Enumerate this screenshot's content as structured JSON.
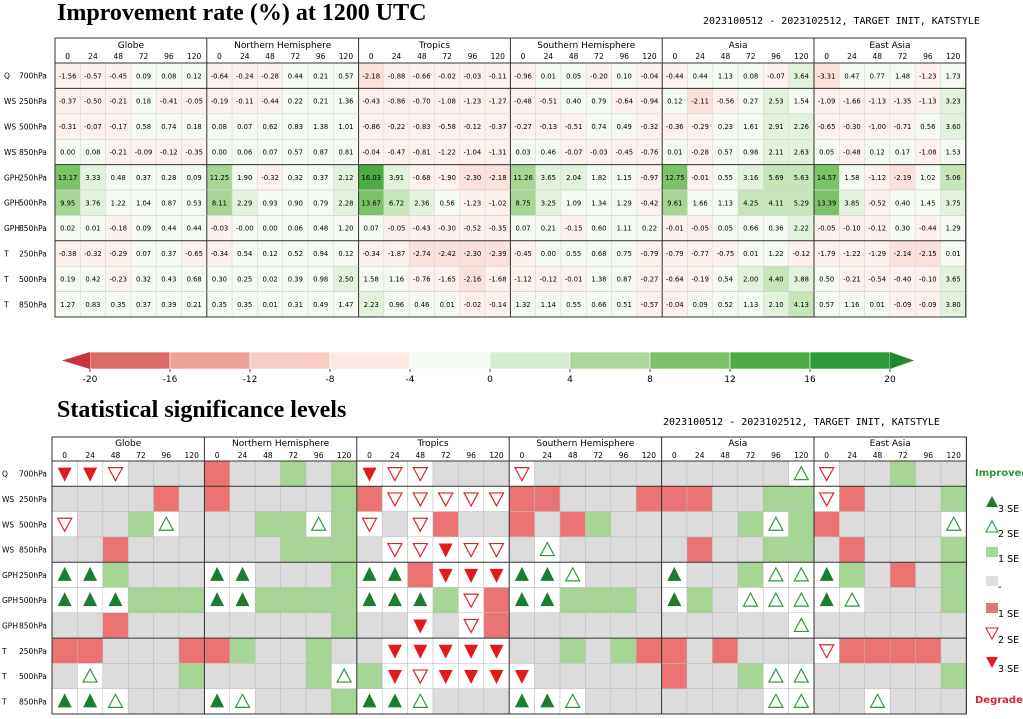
{
  "chart_data": [
    {
      "type": "heatmap",
      "title": "Improvement rate (%) at 1200 UTC",
      "subtitle": "2023100512 - 2023102512, TARGET INIT, KATSTYLE",
      "regions": [
        "Globe",
        "Northern Hemisphere",
        "Tropics",
        "Southern Hemisphere",
        "Asia",
        "East Asia"
      ],
      "lead_times": [
        "0",
        "24",
        "48",
        "72",
        "96",
        "120"
      ],
      "rows": [
        "Q 700hPa",
        "WS 250hPa",
        "WS 500hPa",
        "WS 850hPa",
        "GPH 250hPa",
        "GPH 500hPa",
        "GPH 850hPa",
        "T 250hPa",
        "T 500hPa",
        "T 850hPa"
      ],
      "values": [
        [
          "-1.56",
          "-0.57",
          "-0.45",
          "0.09",
          "0.08",
          "0.12",
          "-0.64",
          "-0.24",
          "-0.28",
          "0.44",
          "0.21",
          "0.57",
          "-2.18",
          "-0.88",
          "-0.66",
          "-0.02",
          "-0.03",
          "-0.11",
          "-0.96",
          "0.01",
          "0.05",
          "-0.20",
          "0.10",
          "-0.04",
          "-0.44",
          "0.44",
          "1.13",
          "0.08",
          "-0.07",
          "3.64",
          "-3.31",
          "0.47",
          "0.77",
          "1.48",
          "-1.23",
          "1.73"
        ],
        [
          "-0.37",
          "-0.50",
          "-0.21",
          "0.18",
          "-0.41",
          "-0.05",
          "-0.19",
          "-0.11",
          "-0.44",
          "0.22",
          "0.21",
          "1.36",
          "-0.43",
          "-0.86",
          "-0.70",
          "-1.08",
          "-1.23",
          "-1.27",
          "-0.48",
          "-0.51",
          "0.40",
          "0.79",
          "-0.64",
          "-0.94",
          "0.12",
          "-2.11",
          "-0.56",
          "0.27",
          "2.53",
          "1.54",
          "-1.09",
          "-1.66",
          "-1.13",
          "-1.35",
          "-1.13",
          "3.23"
        ],
        [
          "-0.31",
          "-0.07",
          "-0.17",
          "0.58",
          "0.74",
          "0.18",
          "0.08",
          "0.07",
          "0.62",
          "0.83",
          "1.38",
          "1.01",
          "-0.86",
          "-0.22",
          "-0.83",
          "-0.58",
          "-0.12",
          "-0.37",
          "-0.27",
          "-0.13",
          "-0.51",
          "0.74",
          "0.49",
          "-0.32",
          "-0.36",
          "-0.29",
          "0.23",
          "1.61",
          "2.91",
          "2.26",
          "-0.65",
          "-0.30",
          "-1.00",
          "-0.71",
          "0.56",
          "3.60"
        ],
        [
          "0.00",
          "0.08",
          "-0.21",
          "-0.09",
          "-0.12",
          "-0.35",
          "0.00",
          "0.06",
          "0.07",
          "0.57",
          "0.87",
          "0.81",
          "-0.04",
          "-0.47",
          "-0.81",
          "-1.22",
          "-1.04",
          "-1.31",
          "0.03",
          "0.46",
          "-0.07",
          "-0.03",
          "-0.45",
          "-0.76",
          "0.01",
          "-0.28",
          "0.57",
          "0.98",
          "2.11",
          "2.63",
          "0.05",
          "-0.48",
          "0.12",
          "0.17",
          "-1.08",
          "1.53"
        ],
        [
          "13.17",
          "3.33",
          "0.48",
          "0.37",
          "0.28",
          "0.09",
          "11.25",
          "1.90",
          "-0.32",
          "0.32",
          "0.37",
          "2.12",
          "16.03",
          "3.91",
          "-0.68",
          "-1.90",
          "-2.30",
          "-2.18",
          "11.26",
          "3.65",
          "2.04",
          "1.82",
          "1.15",
          "-0.97",
          "12.75",
          "-0.01",
          "0.55",
          "3.16",
          "5.69",
          "5.63",
          "14.57",
          "1.58",
          "-1.12",
          "-2.19",
          "1.02",
          "5.06"
        ],
        [
          "9.95",
          "3.76",
          "1.22",
          "1.04",
          "0.87",
          "0.53",
          "8.11",
          "2.29",
          "0.93",
          "0.90",
          "0.79",
          "2.28",
          "13.67",
          "6.72",
          "2.36",
          "0.56",
          "-1.23",
          "-1.02",
          "8.75",
          "3.25",
          "1.09",
          "1.34",
          "1.29",
          "-0.42",
          "9.61",
          "1.66",
          "1.13",
          "4.25",
          "4.11",
          "5.29",
          "13.39",
          "3.85",
          "-0.52",
          "0.40",
          "1.45",
          "3.75"
        ],
        [
          "0.02",
          "0.01",
          "-0.18",
          "0.09",
          "0.44",
          "0.44",
          "-0.03",
          "-0.00",
          "0.00",
          "0.06",
          "0.48",
          "1.20",
          "0.07",
          "-0.05",
          "-0.43",
          "-0.30",
          "-0.52",
          "-0.35",
          "0.07",
          "0.21",
          "-0.15",
          "0.60",
          "1.11",
          "0.22",
          "-0.01",
          "-0.05",
          "0.05",
          "0.66",
          "0.36",
          "2.22",
          "-0.05",
          "-0.10",
          "-0.12",
          "0.30",
          "-0.44",
          "1.29"
        ],
        [
          "-0.38",
          "-0.32",
          "-0.29",
          "0.07",
          "0.37",
          "-0.65",
          "-0.34",
          "0.54",
          "0.12",
          "0.52",
          "0.94",
          "0.12",
          "-0.34",
          "-1.87",
          "-2.74",
          "-2.42",
          "-2.30",
          "-2.39",
          "-0.45",
          "0.00",
          "0.55",
          "0.68",
          "0.75",
          "-0.79",
          "-0.79",
          "-0.77",
          "-0.75",
          "0.01",
          "1.22",
          "-0.12",
          "-1.79",
          "-1.22",
          "-1.29",
          "-2.14",
          "-2.15",
          "0.01"
        ],
        [
          "0.19",
          "0.42",
          "-0.23",
          "0.32",
          "0.43",
          "0.68",
          "0.30",
          "0.25",
          "0.02",
          "0.39",
          "0.98",
          "2.50",
          "1.58",
          "1.16",
          "-0.76",
          "-1.65",
          "-2.16",
          "-1.68",
          "-1.12",
          "-0.12",
          "-0.01",
          "1.38",
          "0.87",
          "-0.27",
          "-0.64",
          "-0.19",
          "0.54",
          "2.00",
          "4.40",
          "3.88",
          "0.50",
          "-0.21",
          "-0.54",
          "-0.40",
          "-0.10",
          "3.65"
        ],
        [
          "1.27",
          "0.83",
          "0.35",
          "0.37",
          "0.39",
          "0.21",
          "0.35",
          "0.35",
          "0.01",
          "0.31",
          "0.49",
          "1.47",
          "2.23",
          "0.96",
          "0.46",
          "0.01",
          "-0.02",
          "-0.14",
          "1.32",
          "1.14",
          "0.55",
          "0.66",
          "0.51",
          "-0.57",
          "-0.04",
          "0.09",
          "0.52",
          "1.13",
          "2.10",
          "4.13",
          "0.57",
          "1.16",
          "0.01",
          "-0.09",
          "-0.09",
          "3.80"
        ]
      ],
      "colorbar": {
        "ticks": [
          "-20",
          "-16",
          "-12",
          "-8",
          "-4",
          "0",
          "4",
          "8",
          "12",
          "16",
          "20"
        ],
        "colors": [
          "#c8343a",
          "#dc6b66",
          "#eea294",
          "#f7cdc4",
          "#fde9e4",
          "#f5fbf2",
          "#d5ecd0",
          "#a9d79a",
          "#7cc269",
          "#4cab42",
          "#2f9a3a",
          "#1f8a2f"
        ]
      }
    },
    {
      "type": "heatmap",
      "title": "Statistical significance levels",
      "subtitle": "2023100512 - 2023102512, TARGET INIT, KATSTYLE",
      "regions": [
        "Globe",
        "Northern Hemisphere",
        "Tropics",
        "Southern Hemisphere",
        "Asia",
        "East Asia"
      ],
      "lead_times": [
        "0",
        "24",
        "48",
        "72",
        "96",
        "120"
      ],
      "rows": [
        "Q 700hPa",
        "WS 250hPa",
        "WS 500hPa",
        "WS 850hPa",
        "GPH 250hPa",
        "GPH 500hPa",
        "GPH 850hPa",
        "T 250hPa",
        "T 500hPa",
        "T 850hPa"
      ],
      "levels": [
        [
          -3,
          -3,
          -2,
          0,
          0,
          0,
          -1,
          0,
          0,
          1,
          0,
          1,
          -3,
          -2,
          -2,
          0,
          0,
          0,
          -2,
          0,
          0,
          0,
          0,
          0,
          0,
          0,
          0,
          0,
          0,
          2,
          -2,
          0,
          0,
          1,
          0,
          0
        ],
        [
          0,
          0,
          0,
          0,
          -1,
          0,
          -1,
          0,
          0,
          0,
          0,
          1,
          -1,
          -2,
          -2,
          -2,
          -2,
          -2,
          -1,
          -1,
          0,
          0,
          0,
          -1,
          -1,
          -1,
          0,
          0,
          1,
          1,
          -2,
          -1,
          0,
          0,
          0,
          1
        ],
        [
          -2,
          0,
          0,
          1,
          2,
          0,
          0,
          0,
          1,
          1,
          2,
          1,
          -2,
          0,
          -2,
          -1,
          0,
          0,
          -1,
          0,
          -1,
          1,
          0,
          0,
          0,
          0,
          0,
          1,
          2,
          1,
          -1,
          0,
          0,
          0,
          0,
          2
        ],
        [
          0,
          0,
          -1,
          0,
          0,
          0,
          0,
          0,
          0,
          1,
          1,
          1,
          0,
          -2,
          -2,
          -3,
          -2,
          -2,
          0,
          2,
          0,
          0,
          0,
          0,
          0,
          -1,
          0,
          0,
          1,
          1,
          0,
          -1,
          0,
          0,
          0,
          1
        ],
        [
          3,
          3,
          1,
          0,
          0,
          0,
          3,
          3,
          0,
          0,
          0,
          1,
          3,
          3,
          -1,
          -3,
          -3,
          -3,
          3,
          3,
          2,
          0,
          0,
          0,
          3,
          0,
          0,
          1,
          2,
          2,
          3,
          1,
          0,
          -1,
          0,
          1
        ],
        [
          3,
          3,
          3,
          1,
          1,
          1,
          3,
          3,
          1,
          1,
          1,
          1,
          3,
          3,
          3,
          1,
          -2,
          -1,
          3,
          3,
          1,
          1,
          1,
          0,
          3,
          1,
          0,
          2,
          2,
          2,
          3,
          2,
          0,
          0,
          0,
          1
        ],
        [
          0,
          0,
          -1,
          0,
          0,
          0,
          0,
          0,
          0,
          0,
          0,
          1,
          0,
          0,
          -3,
          0,
          -2,
          -1,
          0,
          0,
          0,
          0,
          0,
          0,
          0,
          0,
          0,
          0,
          0,
          2,
          0,
          0,
          0,
          0,
          0,
          0
        ],
        [
          -1,
          -1,
          0,
          0,
          0,
          -1,
          -1,
          1,
          0,
          0,
          1,
          0,
          0,
          -3,
          -3,
          -3,
          -3,
          -3,
          0,
          0,
          1,
          0,
          1,
          -1,
          -1,
          0,
          -1,
          0,
          0,
          0,
          -2,
          -1,
          -1,
          -1,
          -1,
          0
        ],
        [
          0,
          2,
          0,
          0,
          0,
          1,
          0,
          0,
          0,
          0,
          1,
          2,
          1,
          -3,
          -2,
          -3,
          -3,
          -3,
          -3,
          0,
          0,
          0,
          0,
          0,
          -1,
          0,
          0,
          1,
          2,
          2,
          0,
          0,
          0,
          0,
          0,
          1
        ],
        [
          3,
          3,
          2,
          0,
          0,
          0,
          3,
          2,
          0,
          0,
          0,
          1,
          3,
          3,
          2,
          0,
          0,
          0,
          3,
          3,
          2,
          0,
          0,
          0,
          0,
          0,
          0,
          0,
          2,
          2,
          0,
          0,
          2,
          0,
          0,
          0
        ]
      ],
      "legend": {
        "improved": "Improved",
        "degraded": "Degraded",
        "items": [
          "3 SE",
          "2 SE",
          "1 SE",
          "-",
          "1 SE",
          "2 SE",
          "3 SE"
        ]
      }
    }
  ]
}
